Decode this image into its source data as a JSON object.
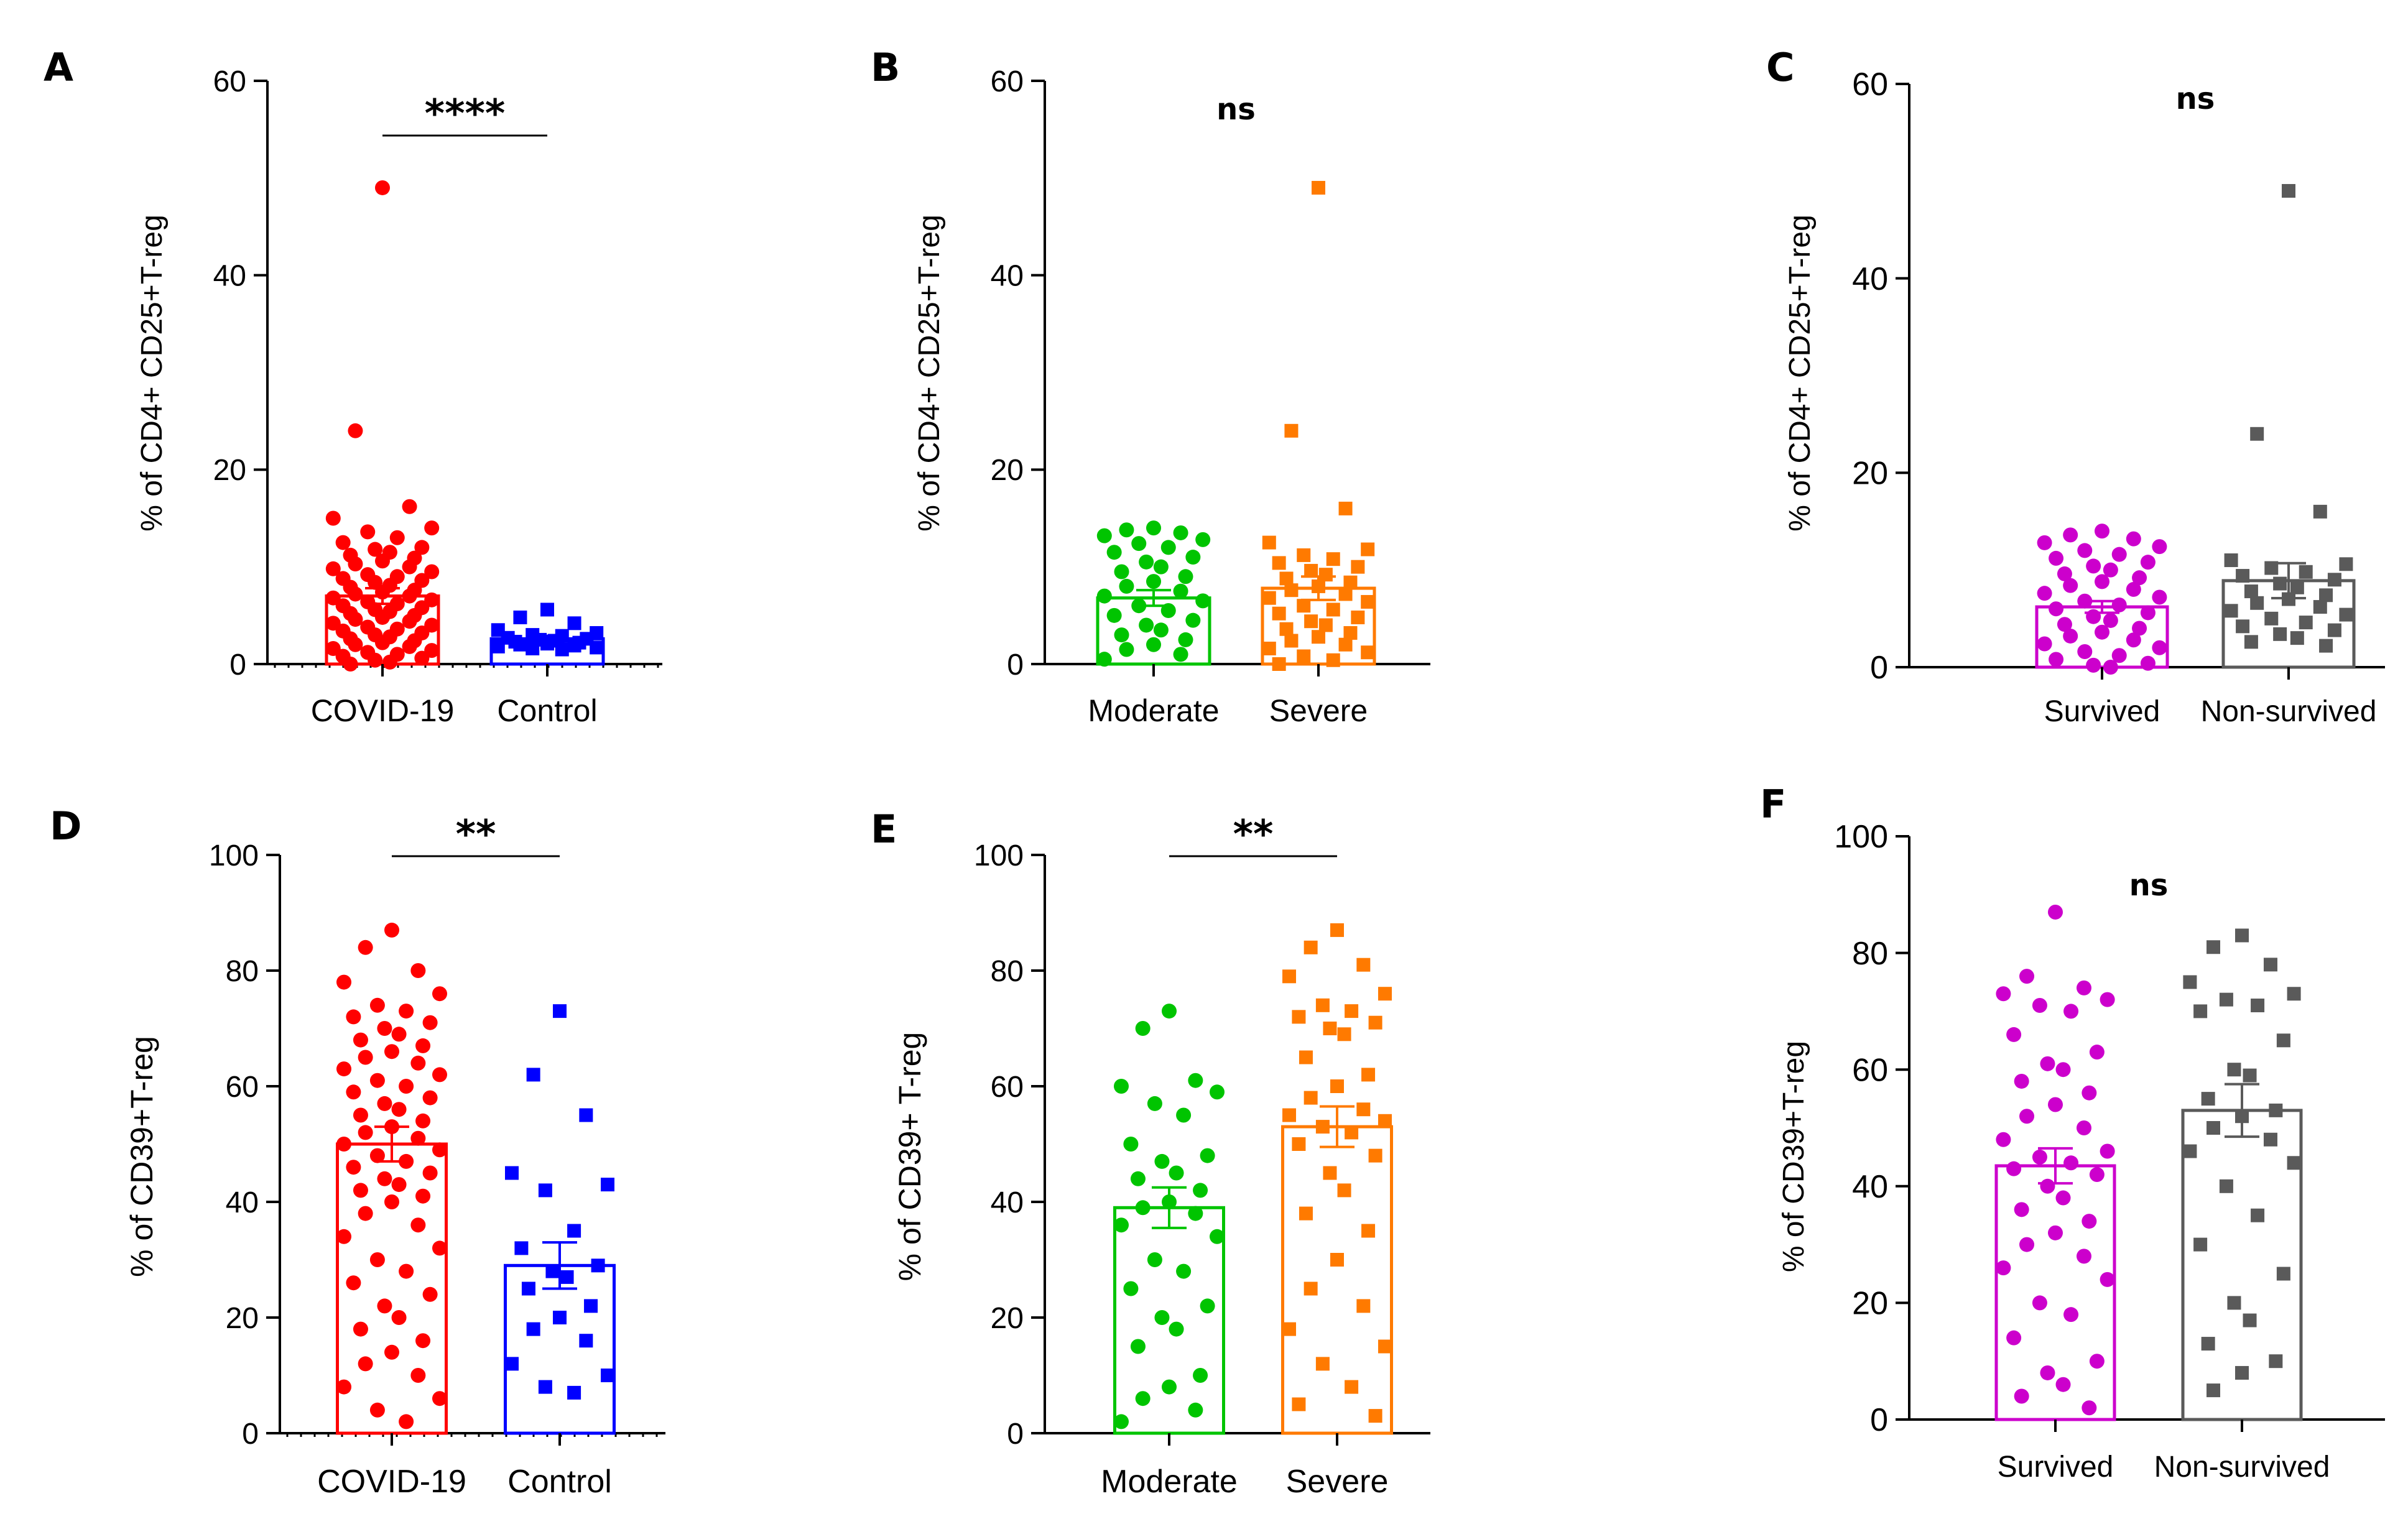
{
  "chart_data": [
    {
      "panel": "A",
      "type": "scatter",
      "ylabel": "% of CD4+ CD25+T-reg",
      "ylim": [
        0,
        60
      ],
      "yticks": [
        0,
        20,
        40,
        60
      ],
      "yticklabels": [
        "0",
        "20",
        "40",
        "60"
      ],
      "categories": [
        "COVID-19",
        "Control"
      ],
      "significance": "****",
      "groups": [
        {
          "name": "COVID-19",
          "color": "#ff0000",
          "marker": "circle",
          "mean": 7.0,
          "sem": 0.8,
          "values": [
            49,
            24,
            16.2,
            15,
            14,
            13.6,
            13,
            12.5,
            12,
            11.8,
            11.5,
            11.2,
            10.9,
            10.6,
            10.3,
            10,
            9.8,
            9.5,
            9.2,
            9,
            8.8,
            8.6,
            8.4,
            8.1,
            7.9,
            7.6,
            7.4,
            7.2,
            7,
            6.8,
            6.6,
            6.4,
            6.2,
            6,
            5.8,
            5.6,
            5.4,
            5.2,
            5,
            4.8,
            4.6,
            4.4,
            4.2,
            4,
            3.8,
            3.6,
            3.4,
            3.2,
            3,
            2.8,
            2.6,
            2.4,
            2.2,
            2,
            1.8,
            1.6,
            1.4,
            1.2,
            1,
            0.8,
            0.6,
            0.4,
            0.2,
            0
          ]
        },
        {
          "name": "Control",
          "color": "#0000ff",
          "marker": "square",
          "mean": 2.6,
          "sem": 0.3,
          "values": [
            5.6,
            4.8,
            4.2,
            3.5,
            3.2,
            3.0,
            2.9,
            2.7,
            2.6,
            2.5,
            2.4,
            2.3,
            2.2,
            2.1,
            2.0,
            1.9,
            1.8,
            1.7,
            1.6,
            1.5
          ]
        }
      ]
    },
    {
      "panel": "B",
      "type": "scatter",
      "ylabel": "% of CD4+ CD25+T-reg",
      "ylim": [
        0,
        60
      ],
      "yticks": [
        0,
        20,
        40,
        60
      ],
      "yticklabels": [
        "0",
        "20",
        "40",
        "60"
      ],
      "categories": [
        "Moderate",
        "Severe"
      ],
      "significance": "ns",
      "groups": [
        {
          "name": "Moderate",
          "color": "#00c400",
          "marker": "circle",
          "mean": 6.8,
          "sem": 0.8,
          "values": [
            14,
            13.8,
            13.5,
            13.2,
            12.8,
            12.4,
            12,
            11.5,
            11,
            10.5,
            10,
            9.5,
            9,
            8.5,
            8,
            7.5,
            7,
            6.5,
            6,
            5.5,
            5,
            4.5,
            4,
            3.5,
            3,
            2.5,
            2,
            1.5,
            1,
            0.5
          ]
        },
        {
          "name": "Severe",
          "color": "#ff7a00",
          "marker": "square",
          "mean": 7.8,
          "sem": 1.2,
          "values": [
            49,
            24,
            16,
            12.5,
            11.8,
            11.2,
            10.8,
            10.4,
            10,
            9.6,
            9.2,
            8.8,
            8.4,
            8,
            7.6,
            7.2,
            6.8,
            6.4,
            6,
            5.6,
            5.2,
            4.8,
            4.4,
            4,
            3.6,
            3.2,
            2.8,
            2.4,
            2,
            1.6,
            1.2,
            0.8,
            0.4,
            0
          ]
        }
      ]
    },
    {
      "panel": "C",
      "type": "scatter",
      "ylabel": "% of CD4+ CD25+T-reg",
      "ylim": [
        0,
        60
      ],
      "yticks": [
        0,
        20,
        40,
        60
      ],
      "yticklabels": [
        "0",
        "20",
        "40",
        "60"
      ],
      "categories": [
        "Survived",
        "Non-survived"
      ],
      "significance": "ns",
      "groups": [
        {
          "name": "Survived",
          "color": "#cc00cc",
          "marker": "circle",
          "mean": 6.2,
          "sem": 0.6,
          "values": [
            14,
            13.6,
            13.2,
            12.8,
            12.4,
            12,
            11.6,
            11.2,
            10.8,
            10.4,
            10,
            9.6,
            9.2,
            8.8,
            8.4,
            8,
            7.6,
            7.2,
            6.8,
            6.4,
            6,
            5.6,
            5.2,
            4.8,
            4.4,
            4,
            3.6,
            3.2,
            2.8,
            2.4,
            2,
            1.6,
            1.2,
            0.8,
            0.4,
            0.2,
            0
          ]
        },
        {
          "name": "Non-survived",
          "color": "#5a5a5a",
          "marker": "square",
          "mean": 8.9,
          "sem": 1.8,
          "values": [
            49,
            24,
            16,
            11,
            10.6,
            10.2,
            9.8,
            9.4,
            9,
            8.6,
            8.2,
            7.8,
            7.4,
            7,
            6.6,
            6.2,
            5.8,
            5.4,
            5,
            4.6,
            4.2,
            3.8,
            3.4,
            3,
            2.6,
            2.2
          ]
        }
      ]
    },
    {
      "panel": "D",
      "type": "scatter",
      "ylabel": "% of CD39+T-reg",
      "ylim": [
        0,
        100
      ],
      "yticks": [
        0,
        20,
        40,
        60,
        80,
        100
      ],
      "yticklabels": [
        "0",
        "20",
        "40",
        "60",
        "80",
        "100"
      ],
      "categories": [
        "COVID-19",
        "Control"
      ],
      "significance": "**",
      "groups": [
        {
          "name": "COVID-19",
          "color": "#ff0000",
          "marker": "circle",
          "mean": 50,
          "sem": 3,
          "values": [
            87,
            84,
            80,
            78,
            76,
            74,
            73,
            72,
            71,
            70,
            69,
            68,
            67,
            66,
            65,
            64,
            63,
            62,
            61,
            60,
            59,
            58,
            57,
            56,
            55,
            54,
            53,
            52,
            51,
            50,
            49,
            48,
            47,
            46,
            45,
            44,
            43,
            42,
            41,
            40,
            38,
            36,
            34,
            32,
            30,
            28,
            26,
            24,
            22,
            20,
            18,
            16,
            14,
            12,
            10,
            8,
            6,
            4,
            2
          ]
        },
        {
          "name": "Control",
          "color": "#0000ff",
          "marker": "square",
          "mean": 29,
          "sem": 4,
          "values": [
            73,
            62,
            55,
            45,
            43,
            42,
            35,
            32,
            29,
            28,
            27,
            25,
            22,
            20,
            18,
            16,
            12,
            10,
            8,
            7
          ]
        }
      ]
    },
    {
      "panel": "E",
      "type": "scatter",
      "ylabel": "% of CD39+ T-reg",
      "ylim": [
        0,
        100
      ],
      "yticks": [
        0,
        20,
        40,
        60,
        80,
        100
      ],
      "yticklabels": [
        "0",
        "20",
        "40",
        "60",
        "80",
        "100"
      ],
      "categories": [
        "Moderate",
        "Severe"
      ],
      "significance": "**",
      "groups": [
        {
          "name": "Moderate",
          "color": "#00c400",
          "marker": "circle",
          "mean": 39,
          "sem": 3.5,
          "values": [
            73,
            70,
            61,
            60,
            59,
            57,
            55,
            50,
            48,
            47,
            45,
            44,
            42,
            40,
            39,
            38,
            36,
            34,
            30,
            28,
            25,
            22,
            20,
            18,
            15,
            10,
            8,
            6,
            4,
            2
          ]
        },
        {
          "name": "Severe",
          "color": "#ff7a00",
          "marker": "square",
          "mean": 53,
          "sem": 3.5,
          "values": [
            87,
            84,
            81,
            79,
            76,
            74,
            73,
            72,
            71,
            70,
            69,
            65,
            62,
            60,
            58,
            56,
            55,
            54,
            53,
            52,
            50,
            48,
            45,
            42,
            38,
            35,
            30,
            25,
            22,
            18,
            15,
            12,
            8,
            5,
            3
          ]
        }
      ]
    },
    {
      "panel": "F",
      "type": "scatter",
      "ylabel": "% of CD39+T-reg",
      "ylim": [
        0,
        100
      ],
      "yticks": [
        0,
        20,
        40,
        60,
        80,
        100
      ],
      "yticklabels": [
        "0",
        "20",
        "40",
        "60",
        "80",
        "100"
      ],
      "categories": [
        "Survived",
        "Non-survived"
      ],
      "significance": "ns",
      "groups": [
        {
          "name": "Survived",
          "color": "#cc00cc",
          "marker": "circle",
          "mean": 43.5,
          "sem": 3,
          "values": [
            87,
            76,
            74,
            73,
            72,
            71,
            70,
            66,
            63,
            61,
            60,
            58,
            56,
            54,
            52,
            50,
            48,
            46,
            45,
            44,
            43,
            42,
            40,
            38,
            36,
            34,
            32,
            30,
            28,
            26,
            24,
            20,
            18,
            14,
            10,
            8,
            6,
            4,
            2
          ]
        },
        {
          "name": "Non-survived",
          "color": "#5a5a5a",
          "marker": "square",
          "mean": 53,
          "sem": 4.5,
          "values": [
            83,
            81,
            78,
            75,
            73,
            72,
            71,
            70,
            65,
            60,
            59,
            55,
            53,
            52,
            50,
            48,
            46,
            44,
            40,
            35,
            30,
            25,
            20,
            17,
            13,
            10,
            8,
            5
          ]
        }
      ]
    }
  ]
}
